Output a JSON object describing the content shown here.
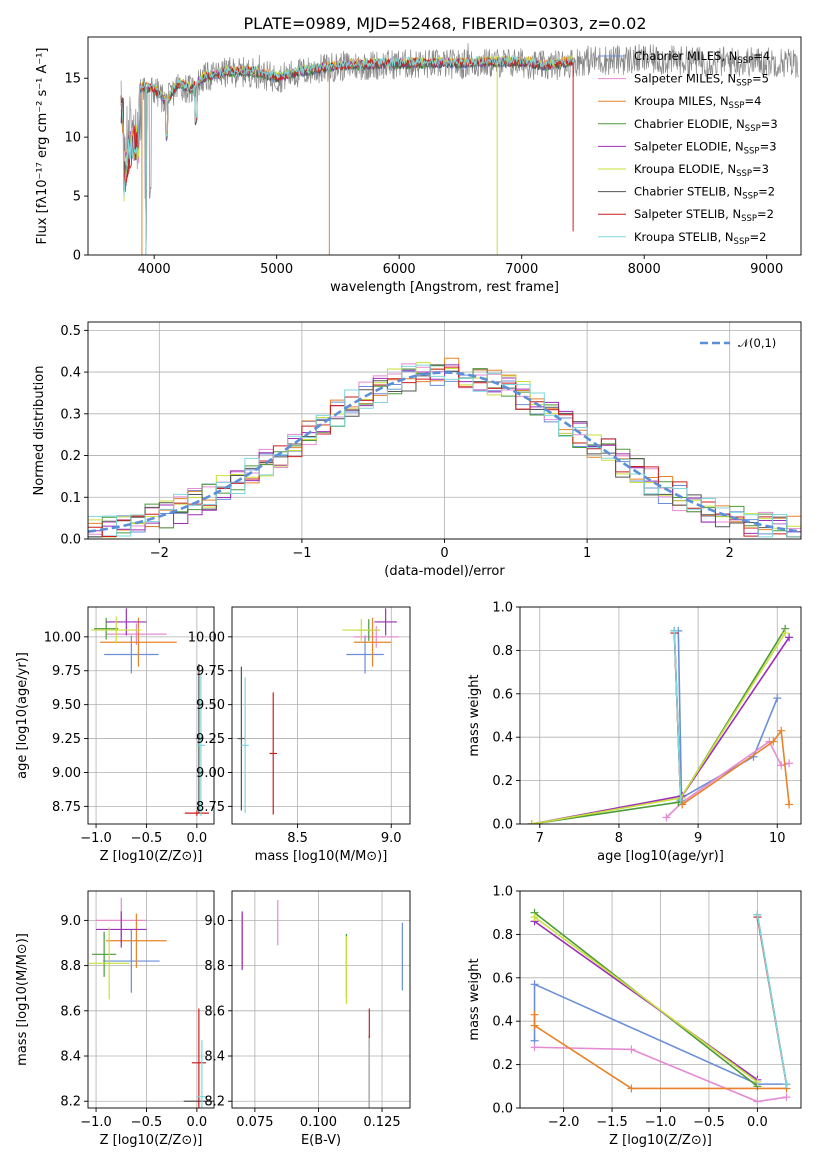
{
  "figure": {
    "title": "PLATE=0989, MJD=52468, FIBERID=0303, z=0.02"
  },
  "colors": {
    "Chabrier MILES": "#6a8fd8",
    "Salpeter MILES": "#e58bd4",
    "Kroupa MILES": "#e8832a",
    "Chabrier ELODIE": "#4a9a3a",
    "Salpeter ELODIE": "#9b2fb8",
    "Kroupa ELODIE": "#c9df3a",
    "Chabrier STELIB": "#555555",
    "Salpeter STELIB": "#cc1f1f",
    "Kroupa STELIB": "#7fd6dc",
    "data": "#888888",
    "normal": "#5b8fd9"
  },
  "chart_data": [
    {
      "id": "spectrum",
      "type": "line",
      "xlabel": "wavelength [Angstrom, rest frame]",
      "ylabel": "Flux [fλ10⁻¹⁷ erg cm⁻² s⁻¹ A⁻¹]",
      "xlim": [
        3460,
        9280
      ],
      "ylim": [
        0,
        18.5
      ],
      "xticks": [
        4000,
        5000,
        6000,
        7000,
        8000,
        9000
      ],
      "yticks": [
        0,
        5,
        10,
        15
      ],
      "legend_position": "top-right",
      "legend": [
        "Chabrier MILES, N_SSP=4",
        "Salpeter MILES, N_SSP=5",
        "Kroupa MILES, N_SSP=4",
        "Chabrier ELODIE, N_SSP=3",
        "Salpeter ELODIE, N_SSP=3",
        "Kroupa ELODIE, N_SSP=3",
        "Chabrier STELIB, N_SSP=2",
        "Salpeter STELIB, N_SSP=2",
        "Kroupa STELIB, N_SSP=2"
      ],
      "continuum_points": [
        [
          3750,
          10
        ],
        [
          3800,
          13.5
        ],
        [
          3900,
          14.2
        ],
        [
          4000,
          14.0
        ],
        [
          4100,
          13.0
        ],
        [
          4200,
          14.5
        ],
        [
          4300,
          14.0
        ],
        [
          4400,
          15.0
        ],
        [
          4600,
          15.5
        ],
        [
          4800,
          15.5
        ],
        [
          5000,
          15.0
        ],
        [
          5200,
          15.5
        ],
        [
          5500,
          16.0
        ],
        [
          6000,
          16.2
        ],
        [
          6500,
          16.2
        ],
        [
          6800,
          16.3
        ],
        [
          7000,
          16.3
        ],
        [
          7200,
          16.0
        ],
        [
          7500,
          16.5
        ],
        [
          8000,
          16.6
        ],
        [
          8500,
          16.4
        ],
        [
          9000,
          16.4
        ],
        [
          9250,
          16.3
        ]
      ],
      "data_range": [
        3730,
        9260
      ],
      "model_range": [
        3730,
        7420
      ],
      "model_absorption_lines": [
        3933,
        5430,
        6800
      ]
    },
    {
      "id": "residuals",
      "type": "line",
      "xlabel": "(data-model)/error",
      "ylabel": "Normed distribution",
      "xlim": [
        -2.5,
        2.5
      ],
      "ylim": [
        0,
        0.52
      ],
      "xticks": [
        -2,
        -1,
        0,
        1,
        2
      ],
      "yticks": [
        0.0,
        0.1,
        0.2,
        0.3,
        0.4,
        0.5
      ],
      "legend": [
        "𝒩(0,1)"
      ],
      "legend_position": "top-right",
      "bin_width": 0.1,
      "series_style": "step histogram per model, gaussian dashed reference"
    },
    {
      "id": "age_vs_Z",
      "type": "scatter",
      "xlabel": "Z [log10(Z/Z⊙)]",
      "ylabel": "age  [log10(age/yr)]",
      "xlim": [
        -1.08,
        0.17
      ],
      "ylim": [
        8.62,
        10.22
      ],
      "xticks": [
        -1.0,
        -0.5,
        0.0
      ],
      "yticks": [
        8.75,
        9.0,
        9.25,
        9.5,
        9.75,
        10.0
      ],
      "points": [
        {
          "model": "Chabrier MILES",
          "x": -0.65,
          "y": 9.87,
          "xerr": 0.27,
          "yerr": 0.14
        },
        {
          "model": "Salpeter MILES",
          "x": -0.6,
          "y": 10.02,
          "xerr": 0.3,
          "yerr": 0.08
        },
        {
          "model": "Kroupa MILES",
          "x": -0.58,
          "y": 9.96,
          "xerr": 0.38,
          "yerr": 0.18
        },
        {
          "model": "Chabrier ELODIE",
          "x": -0.9,
          "y": 10.06,
          "xerr": 0.12,
          "yerr": 0.08
        },
        {
          "model": "Salpeter ELODIE",
          "x": -0.7,
          "y": 10.11,
          "xerr": 0.2,
          "yerr": 0.1
        },
        {
          "model": "Kroupa ELODIE",
          "x": -0.8,
          "y": 10.05,
          "xerr": 0.25,
          "yerr": 0.1
        },
        {
          "model": "Chabrier STELIB",
          "x": 0.02,
          "y": 9.25,
          "xerr": 0.03,
          "yerr": 0.55
        },
        {
          "model": "Salpeter STELIB",
          "x": 0.0,
          "y": 8.7,
          "xerr": 0.12,
          "yerr": 0.02
        },
        {
          "model": "Kroupa STELIB",
          "x": 0.04,
          "y": 9.2,
          "xerr": 0.04,
          "yerr": 0.52
        }
      ]
    },
    {
      "id": "age_vs_mass",
      "type": "scatter",
      "xlabel": "mass [log10(M/M⊙)]",
      "ylabel": "",
      "xlim": [
        8.15,
        9.1
      ],
      "ylim": [
        8.62,
        10.22
      ],
      "xticks": [
        8.5,
        9.0
      ],
      "yticks": [
        8.75,
        9.0,
        9.25,
        9.5,
        9.75,
        10.0
      ],
      "points": [
        {
          "model": "Chabrier MILES",
          "x": 8.86,
          "y": 9.87,
          "xerr": 0.1,
          "yerr": 0.14
        },
        {
          "model": "Salpeter MILES",
          "x": 8.92,
          "y": 10.0,
          "xerr": 0.12,
          "yerr": 0.08
        },
        {
          "model": "Kroupa MILES",
          "x": 8.9,
          "y": 9.96,
          "xerr": 0.1,
          "yerr": 0.18
        },
        {
          "model": "Chabrier ELODIE",
          "x": 8.88,
          "y": 10.05,
          "xerr": 0.06,
          "yerr": 0.08
        },
        {
          "model": "Salpeter ELODIE",
          "x": 8.97,
          "y": 10.11,
          "xerr": 0.06,
          "yerr": 0.1
        },
        {
          "model": "Kroupa ELODIE",
          "x": 8.84,
          "y": 10.05,
          "xerr": 0.1,
          "yerr": 0.08
        },
        {
          "model": "Chabrier STELIB",
          "x": 8.2,
          "y": 9.25,
          "xerr": 0.02,
          "yerr": 0.53
        },
        {
          "model": "Salpeter STELIB",
          "x": 8.37,
          "y": 9.14,
          "xerr": 0.02,
          "yerr": 0.45
        },
        {
          "model": "Kroupa STELIB",
          "x": 8.22,
          "y": 9.2,
          "xerr": 0.02,
          "yerr": 0.5
        }
      ]
    },
    {
      "id": "weight_vs_age",
      "type": "line",
      "xlabel": "age  [log10(age/yr)]",
      "ylabel": "mass weight",
      "xlim": [
        6.75,
        10.3
      ],
      "ylim": [
        0.0,
        1.0
      ],
      "xticks": [
        7,
        8,
        9,
        10
      ],
      "yticks": [
        0.0,
        0.2,
        0.4,
        0.6,
        0.8,
        1.0
      ],
      "series": [
        {
          "name": "Chabrier MILES",
          "x": [
            8.75,
            8.79,
            9.7,
            10.0
          ],
          "y": [
            0.89,
            0.12,
            0.31,
            0.58
          ]
        },
        {
          "name": "Salpeter MILES",
          "x": [
            8.6,
            8.8,
            9.9,
            10.05,
            10.15
          ],
          "y": [
            0.03,
            0.1,
            0.38,
            0.27,
            0.28
          ]
        },
        {
          "name": "Kroupa MILES",
          "x": [
            8.8,
            9.95,
            10.05,
            10.15
          ],
          "y": [
            0.09,
            0.38,
            0.43,
            0.09
          ]
        },
        {
          "name": "Chabrier ELODIE",
          "x": [
            6.9,
            8.75,
            10.1
          ],
          "y": [
            0.0,
            0.1,
            0.9
          ]
        },
        {
          "name": "Salpeter ELODIE",
          "x": [
            6.9,
            8.8,
            10.15
          ],
          "y": [
            0.0,
            0.13,
            0.86
          ]
        },
        {
          "name": "Kroupa ELODIE",
          "x": [
            6.9,
            8.78,
            10.1
          ],
          "y": [
            0.0,
            0.12,
            0.88
          ]
        },
        {
          "name": "Chabrier STELIB",
          "x": [
            8.7,
            8.78
          ],
          "y": [
            0.89,
            0.11
          ]
        },
        {
          "name": "Salpeter STELIB",
          "x": [
            8.7,
            8.78
          ],
          "y": [
            0.88,
            0.11
          ]
        },
        {
          "name": "Kroupa STELIB",
          "x": [
            8.7,
            8.78
          ],
          "y": [
            0.89,
            0.11
          ]
        }
      ]
    },
    {
      "id": "mass_vs_Z",
      "type": "scatter",
      "xlabel": "Z [log10(Z/Z⊙)]",
      "ylabel": "mass [log10(M/M⊙)]",
      "xlim": [
        -1.08,
        0.17
      ],
      "ylim": [
        8.17,
        9.13
      ],
      "xticks": [
        -1.0,
        -0.5,
        0.0
      ],
      "yticks": [
        8.2,
        8.4,
        8.6,
        8.8,
        9.0
      ],
      "points": [
        {
          "model": "Chabrier MILES",
          "x": -0.65,
          "y": 8.82,
          "xerr": 0.28,
          "yerr": 0.14
        },
        {
          "model": "Salpeter MILES",
          "x": -0.75,
          "y": 9.0,
          "xerr": 0.25,
          "yerr": 0.1
        },
        {
          "model": "Kroupa MILES",
          "x": -0.6,
          "y": 8.91,
          "xerr": 0.3,
          "yerr": 0.12
        },
        {
          "model": "Chabrier ELODIE",
          "x": -0.92,
          "y": 8.85,
          "xerr": 0.12,
          "yerr": 0.1
        },
        {
          "model": "Salpeter ELODIE",
          "x": -0.75,
          "y": 8.96,
          "xerr": 0.25,
          "yerr": 0.08
        },
        {
          "model": "Kroupa ELODIE",
          "x": -0.87,
          "y": 8.81,
          "xerr": 0.2,
          "yerr": 0.16
        },
        {
          "model": "Chabrier STELIB",
          "x": 0.02,
          "y": 8.2,
          "xerr": 0.15,
          "yerr": 0.02
        },
        {
          "model": "Salpeter STELIB",
          "x": 0.02,
          "y": 8.37,
          "xerr": 0.07,
          "yerr": 0.24
        },
        {
          "model": "Kroupa STELIB",
          "x": 0.05,
          "y": 8.22,
          "xerr": 0.05,
          "yerr": 0.25
        }
      ]
    },
    {
      "id": "mass_vs_EBV",
      "type": "scatter",
      "xlabel": "E(B-V)",
      "ylabel": "",
      "xlim": [
        0.066,
        0.136
      ],
      "ylim": [
        8.17,
        9.13
      ],
      "xticks": [
        0.075,
        0.1,
        0.125
      ],
      "yticks": [
        8.2,
        8.4,
        8.6,
        8.8,
        9.0
      ],
      "points": [
        {
          "model": "Chabrier MILES",
          "x": 0.133,
          "y": 8.84,
          "yerr": 0.15
        },
        {
          "model": "Salpeter MILES",
          "x": 0.084,
          "y": 8.99,
          "yerr": 0.1
        },
        {
          "model": "Kroupa MILES",
          "x": 0.07,
          "y": 8.91,
          "yerr": 0.12
        },
        {
          "model": "Chabrier ELODIE",
          "x": 0.111,
          "y": 8.8,
          "yerr": 0.14
        },
        {
          "model": "Salpeter ELODIE",
          "x": 0.07,
          "y": 8.91,
          "yerr": 0.13
        },
        {
          "model": "Kroupa ELODIE",
          "x": 0.111,
          "y": 8.78,
          "yerr": 0.15
        },
        {
          "model": "Chabrier STELIB",
          "x": 0.12,
          "y": 8.27,
          "yerr": 0.22
        },
        {
          "model": "Salpeter STELIB",
          "x": 0.12,
          "y": 8.38,
          "yerr": 0.23
        },
        {
          "model": "Kroupa STELIB",
          "x": 0.12,
          "y": 8.25,
          "yerr": 0.23
        }
      ]
    },
    {
      "id": "weight_vs_Z",
      "type": "line",
      "xlabel": "Z [log10(Z/Z⊙)]",
      "ylabel": "mass weight",
      "xlim": [
        -2.45,
        0.45
      ],
      "ylim": [
        0.0,
        1.0
      ],
      "xticks": [
        -2.0,
        -1.5,
        -1.0,
        -0.5,
        0.0
      ],
      "yticks": [
        0.0,
        0.2,
        0.4,
        0.6,
        0.8,
        1.0
      ],
      "series": [
        {
          "name": "Chabrier MILES",
          "x": [
            -2.3,
            -2.3,
            0.0,
            0.3
          ],
          "y": [
            0.31,
            0.57,
            0.11,
            0.11
          ]
        },
        {
          "name": "Salpeter MILES",
          "x": [
            -2.3,
            -1.3,
            0.0,
            0.3
          ],
          "y": [
            0.28,
            0.27,
            0.03,
            0.05
          ]
        },
        {
          "name": "Kroupa MILES",
          "x": [
            -2.3,
            -2.3,
            -1.3,
            0.3
          ],
          "y": [
            0.43,
            0.38,
            0.09,
            0.09
          ]
        },
        {
          "name": "Chabrier ELODIE",
          "x": [
            -2.3,
            0.0
          ],
          "y": [
            0.9,
            0.1
          ]
        },
        {
          "name": "Salpeter ELODIE",
          "x": [
            -2.3,
            0.0
          ],
          "y": [
            0.86,
            0.13
          ]
        },
        {
          "name": "Kroupa ELODIE",
          "x": [
            -2.3,
            0.0
          ],
          "y": [
            0.88,
            0.12
          ]
        },
        {
          "name": "Chabrier STELIB",
          "x": [
            0.0,
            0.3
          ],
          "y": [
            0.89,
            0.11
          ]
        },
        {
          "name": "Salpeter STELIB",
          "x": [
            0.0,
            0.3
          ],
          "y": [
            0.88,
            0.11
          ]
        },
        {
          "name": "Kroupa STELIB",
          "x": [
            0.0,
            0.3
          ],
          "y": [
            0.89,
            0.11
          ]
        }
      ]
    }
  ]
}
